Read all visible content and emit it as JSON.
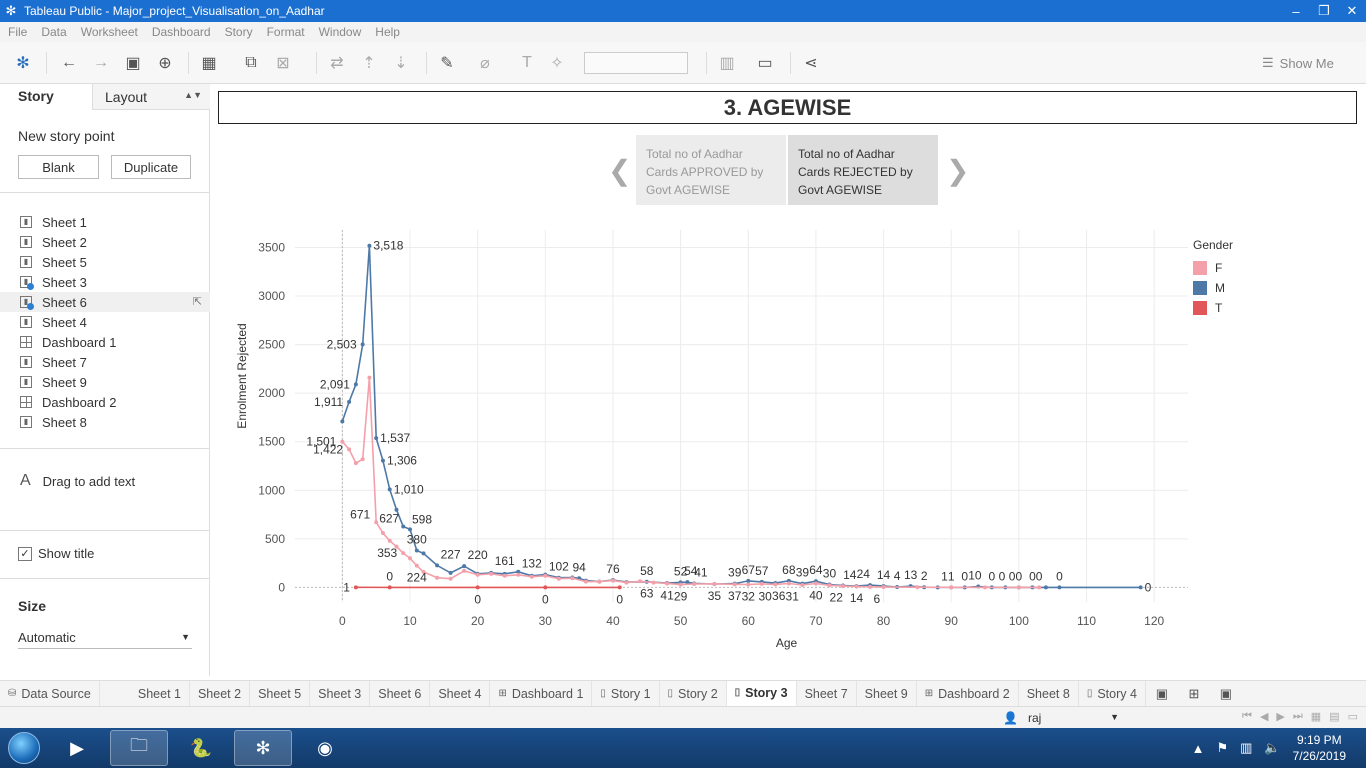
{
  "window": {
    "title": "Tableau Public - Major_project_Visualisation_on_Aadhar"
  },
  "menu": [
    "File",
    "Data",
    "Worksheet",
    "Dashboard",
    "Story",
    "Format",
    "Window",
    "Help"
  ],
  "toolbar": {
    "show_me": "Show Me"
  },
  "left_panel": {
    "tab_story": "Story",
    "tab_layout": "Layout",
    "new_story_point": "New story point",
    "blank_btn": "Blank",
    "duplicate_btn": "Duplicate",
    "sheets": [
      {
        "label": "Sheet 1",
        "type": "sheet"
      },
      {
        "label": "Sheet 2",
        "type": "sheet"
      },
      {
        "label": "Sheet 5",
        "type": "sheet"
      },
      {
        "label": "Sheet 3",
        "type": "sheet-check"
      },
      {
        "label": "Sheet 6",
        "type": "sheet-check"
      },
      {
        "label": "Sheet 4",
        "type": "sheet"
      },
      {
        "label": "Dashboard 1",
        "type": "dashboard"
      },
      {
        "label": "Sheet 7",
        "type": "sheet"
      },
      {
        "label": "Sheet 9",
        "type": "sheet"
      },
      {
        "label": "Dashboard 2",
        "type": "dashboard"
      },
      {
        "label": "Sheet 8",
        "type": "sheet"
      }
    ],
    "drag_text": "Drag to add text",
    "show_title": "Show title",
    "size_label": "Size",
    "size_value": "Automatic"
  },
  "story": {
    "title": "3. AGEWISE",
    "points": [
      "Total no of Aadhar Cards APPROVED by Govt AGEWISE",
      "Total no of Aadhar Cards REJECTED by Govt AGEWISE"
    ]
  },
  "legend": {
    "title": "Gender",
    "items": [
      {
        "label": "F",
        "color": "#f4a0aa"
      },
      {
        "label": "M",
        "color": "#4e79a7"
      },
      {
        "label": "T",
        "color": "#e15759"
      }
    ]
  },
  "chart_data": {
    "type": "line",
    "xlabel": "Age",
    "ylabel": "Enrolment Rejected",
    "xlim": [
      -7,
      125
    ],
    "ylim": [
      -150,
      3680
    ],
    "xticks": [
      0,
      10,
      20,
      30,
      40,
      50,
      60,
      70,
      80,
      90,
      100,
      110,
      120
    ],
    "yticks": [
      0,
      500,
      1000,
      1500,
      2000,
      2500,
      3000,
      3500
    ],
    "grid": true,
    "legend_position": "right",
    "series": [
      {
        "name": "M",
        "color": "#4e79a7",
        "points": [
          [
            0,
            1710
          ],
          [
            1,
            1911
          ],
          [
            2,
            2091
          ],
          [
            3,
            2503
          ],
          [
            4,
            3518
          ],
          [
            5,
            1537
          ],
          [
            6,
            1306
          ],
          [
            7,
            1010
          ],
          [
            8,
            800
          ],
          [
            9,
            627
          ],
          [
            10,
            598
          ],
          [
            11,
            380
          ],
          [
            12,
            350
          ],
          [
            14,
            227
          ],
          [
            16,
            150
          ],
          [
            18,
            220
          ],
          [
            20,
            140
          ],
          [
            22,
            150
          ],
          [
            24,
            140
          ],
          [
            26,
            161
          ],
          [
            28,
            120
          ],
          [
            30,
            132
          ],
          [
            32,
            100
          ],
          [
            34,
            102
          ],
          [
            35,
            94
          ],
          [
            36,
            70
          ],
          [
            38,
            60
          ],
          [
            40,
            76
          ],
          [
            42,
            55
          ],
          [
            45,
            58
          ],
          [
            48,
            45
          ],
          [
            50,
            52
          ],
          [
            51,
            54
          ],
          [
            52,
            41
          ],
          [
            55,
            35
          ],
          [
            58,
            39
          ],
          [
            60,
            67
          ],
          [
            62,
            57
          ],
          [
            64,
            45
          ],
          [
            66,
            68
          ],
          [
            68,
            39
          ],
          [
            70,
            64
          ],
          [
            72,
            30
          ],
          [
            74,
            20
          ],
          [
            76,
            14
          ],
          [
            78,
            24
          ],
          [
            80,
            14
          ],
          [
            82,
            4
          ],
          [
            84,
            13
          ],
          [
            86,
            2
          ],
          [
            88,
            1
          ],
          [
            90,
            1
          ],
          [
            92,
            0
          ],
          [
            94,
            10
          ],
          [
            96,
            0
          ],
          [
            98,
            0
          ],
          [
            100,
            0
          ],
          [
            102,
            0
          ],
          [
            104,
            0
          ],
          [
            106,
            0
          ],
          [
            118,
            0
          ]
        ]
      },
      {
        "name": "F",
        "color": "#f4a0aa",
        "points": [
          [
            0,
            1501
          ],
          [
            1,
            1422
          ],
          [
            2,
            1280
          ],
          [
            3,
            1320
          ],
          [
            4,
            2160
          ],
          [
            5,
            671
          ],
          [
            6,
            560
          ],
          [
            7,
            480
          ],
          [
            8,
            420
          ],
          [
            9,
            353
          ],
          [
            10,
            300
          ],
          [
            11,
            224
          ],
          [
            12,
            160
          ],
          [
            14,
            100
          ],
          [
            16,
            90
          ],
          [
            18,
            170
          ],
          [
            20,
            130
          ],
          [
            22,
            140
          ],
          [
            24,
            120
          ],
          [
            26,
            130
          ],
          [
            28,
            110
          ],
          [
            30,
            120
          ],
          [
            32,
            90
          ],
          [
            34,
            95
          ],
          [
            36,
            60
          ],
          [
            38,
            60
          ],
          [
            40,
            70
          ],
          [
            42,
            50
          ],
          [
            44,
            63
          ],
          [
            46,
            50
          ],
          [
            48,
            41
          ],
          [
            50,
            29
          ],
          [
            52,
            35
          ],
          [
            55,
            37
          ],
          [
            58,
            32
          ],
          [
            60,
            30
          ],
          [
            62,
            36
          ],
          [
            64,
            31
          ],
          [
            66,
            40
          ],
          [
            68,
            25
          ],
          [
            70,
            40
          ],
          [
            72,
            22
          ],
          [
            74,
            14
          ],
          [
            76,
            10
          ],
          [
            78,
            6
          ],
          [
            80,
            4
          ],
          [
            85,
            2
          ],
          [
            90,
            1
          ],
          [
            95,
            0
          ],
          [
            100,
            0
          ],
          [
            103,
            0
          ]
        ]
      },
      {
        "name": "T",
        "color": "#e15759",
        "points": [
          [
            2,
            1
          ],
          [
            7,
            0
          ],
          [
            20,
            0
          ],
          [
            30,
            0
          ],
          [
            41,
            0
          ]
        ]
      }
    ],
    "labels": [
      {
        "x": 4,
        "y": 3518,
        "text": "3,518",
        "pos": "r"
      },
      {
        "x": 3,
        "y": 2503,
        "text": "2,503",
        "pos": "l"
      },
      {
        "x": 2,
        "y": 2091,
        "text": "2,091",
        "pos": "l"
      },
      {
        "x": 1,
        "y": 1911,
        "text": "1,911",
        "pos": "l"
      },
      {
        "x": 0,
        "y": 1501,
        "text": "1,501",
        "pos": "l"
      },
      {
        "x": 1,
        "y": 1422,
        "text": "1,422",
        "pos": "l"
      },
      {
        "x": 5,
        "y": 1537,
        "text": "1,537",
        "pos": "r"
      },
      {
        "x": 6,
        "y": 1306,
        "text": "1,306",
        "pos": "r"
      },
      {
        "x": 7,
        "y": 1010,
        "text": "1,010",
        "pos": "r"
      },
      {
        "x": 9,
        "y": 627,
        "text": "627",
        "pos": "tl"
      },
      {
        "x": 5,
        "y": 671,
        "text": "671",
        "pos": "bl"
      },
      {
        "x": 10,
        "y": 598,
        "text": "598",
        "pos": "tr"
      },
      {
        "x": 9,
        "y": 353,
        "text": "353",
        "pos": "l"
      },
      {
        "x": 11,
        "y": 380,
        "text": "380",
        "pos": "t"
      },
      {
        "x": 11,
        "y": 224,
        "text": "224",
        "pos": "b"
      },
      {
        "x": 16,
        "y": 227,
        "text": "227",
        "pos": "t"
      },
      {
        "x": 20,
        "y": 220,
        "text": "220",
        "pos": "t"
      },
      {
        "x": 24,
        "y": 161,
        "text": "161",
        "pos": "t"
      },
      {
        "x": 28,
        "y": 132,
        "text": "132",
        "pos": "t"
      },
      {
        "x": 32,
        "y": 102,
        "text": "102",
        "pos": "t"
      },
      {
        "x": 35,
        "y": 94,
        "text": "94",
        "pos": "t"
      },
      {
        "x": 40,
        "y": 76,
        "text": "76",
        "pos": "t"
      },
      {
        "x": 45,
        "y": 58,
        "text": "58",
        "pos": "t"
      },
      {
        "x": 50,
        "y": 52,
        "text": "52",
        "pos": "t"
      },
      {
        "x": 51.5,
        "y": 54,
        "text": "54",
        "pos": "t"
      },
      {
        "x": 53,
        "y": 41,
        "text": "41",
        "pos": "t"
      },
      {
        "x": 58,
        "y": 39,
        "text": "39",
        "pos": "t"
      },
      {
        "x": 60,
        "y": 67,
        "text": "67",
        "pos": "t"
      },
      {
        "x": 62,
        "y": 57,
        "text": "57",
        "pos": "t"
      },
      {
        "x": 66,
        "y": 68,
        "text": "68",
        "pos": "t"
      },
      {
        "x": 68,
        "y": 39,
        "text": "39",
        "pos": "t"
      },
      {
        "x": 70,
        "y": 64,
        "text": "64",
        "pos": "t"
      },
      {
        "x": 72,
        "y": 30,
        "text": "30",
        "pos": "t"
      },
      {
        "x": 75,
        "y": 14,
        "text": "14",
        "pos": "t"
      },
      {
        "x": 77,
        "y": 24,
        "text": "24",
        "pos": "t"
      },
      {
        "x": 80,
        "y": 14,
        "text": "14",
        "pos": "t"
      },
      {
        "x": 82,
        "y": 4,
        "text": "4",
        "pos": "t"
      },
      {
        "x": 84,
        "y": 13,
        "text": "13",
        "pos": "t"
      },
      {
        "x": 86,
        "y": 2,
        "text": "2",
        "pos": "t"
      },
      {
        "x": 89,
        "y": 1,
        "text": "1",
        "pos": "t"
      },
      {
        "x": 90,
        "y": 1,
        "text": "1",
        "pos": "t"
      },
      {
        "x": 92,
        "y": 0,
        "text": "0",
        "pos": "t"
      },
      {
        "x": 93.5,
        "y": 10,
        "text": "10",
        "pos": "t"
      },
      {
        "x": 96,
        "y": 0,
        "text": "0",
        "pos": "t"
      },
      {
        "x": 97.5,
        "y": 0,
        "text": "0",
        "pos": "t"
      },
      {
        "x": 99.5,
        "y": 0,
        "text": "00",
        "pos": "t"
      },
      {
        "x": 102.5,
        "y": 0,
        "text": "00",
        "pos": "t"
      },
      {
        "x": 106,
        "y": 0,
        "text": "0",
        "pos": "t"
      },
      {
        "x": 118,
        "y": 0,
        "text": "0",
        "pos": "r"
      },
      {
        "x": 2,
        "y": 1,
        "text": "1",
        "pos": "l"
      },
      {
        "x": 7,
        "y": 0,
        "text": "0",
        "pos": "t"
      },
      {
        "x": 20,
        "y": 0,
        "text": "0",
        "pos": "b"
      },
      {
        "x": 30,
        "y": 0,
        "text": "0",
        "pos": "b"
      },
      {
        "x": 41,
        "y": 0,
        "text": "0",
        "pos": "b"
      },
      {
        "x": 45,
        "y": 63,
        "text": "63",
        "pos": "b"
      },
      {
        "x": 48,
        "y": 41,
        "text": "41",
        "pos": "b"
      },
      {
        "x": 50,
        "y": 29,
        "text": "29",
        "pos": "b"
      },
      {
        "x": 55,
        "y": 35,
        "text": "35",
        "pos": "b"
      },
      {
        "x": 58,
        "y": 37,
        "text": "37",
        "pos": "b"
      },
      {
        "x": 60,
        "y": 32,
        "text": "32",
        "pos": "b"
      },
      {
        "x": 62.5,
        "y": 30,
        "text": "30",
        "pos": "b"
      },
      {
        "x": 64.5,
        "y": 36,
        "text": "36",
        "pos": "b"
      },
      {
        "x": 66.5,
        "y": 31,
        "text": "31",
        "pos": "b"
      },
      {
        "x": 70,
        "y": 40,
        "text": "40",
        "pos": "b"
      },
      {
        "x": 73,
        "y": 22,
        "text": "22",
        "pos": "b"
      },
      {
        "x": 76,
        "y": 14,
        "text": "14",
        "pos": "b"
      },
      {
        "x": 79,
        "y": 6,
        "text": "6",
        "pos": "b"
      }
    ]
  },
  "bottom_tabs": [
    {
      "label": "Data Source",
      "icon": "datasource"
    },
    {
      "label": "Sheet 1",
      "icon": ""
    },
    {
      "label": "Sheet 2",
      "icon": ""
    },
    {
      "label": "Sheet 5",
      "icon": ""
    },
    {
      "label": "Sheet 3",
      "icon": ""
    },
    {
      "label": "Sheet 6",
      "icon": ""
    },
    {
      "label": "Sheet 4",
      "icon": ""
    },
    {
      "label": "Dashboard 1",
      "icon": "dashboard"
    },
    {
      "label": "Story 1",
      "icon": "story"
    },
    {
      "label": "Story 2",
      "icon": "story"
    },
    {
      "label": "Story 3",
      "icon": "story",
      "active": true
    },
    {
      "label": "Sheet 7",
      "icon": ""
    },
    {
      "label": "Sheet 9",
      "icon": ""
    },
    {
      "label": "Dashboard 2",
      "icon": "dashboard"
    },
    {
      "label": "Sheet 8",
      "icon": ""
    },
    {
      "label": "Story 4",
      "icon": "story"
    }
  ],
  "status": {
    "user": "raj"
  },
  "taskbar": {
    "time": "9:19 PM",
    "date": "7/26/2019"
  }
}
